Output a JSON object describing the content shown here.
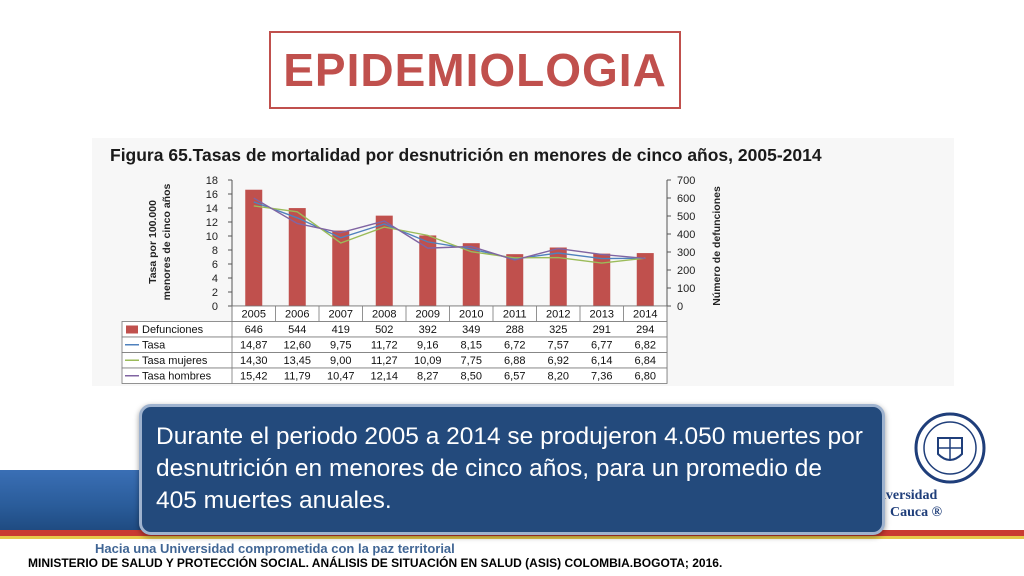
{
  "slide": {
    "title": "EPIDEMIOLOGIA",
    "callout": "Durante el periodo 2005 a 2014 se produjeron 4.050 muertes por desnutrición en menores de cinco años, para un promedio de 405 muertes anuales.",
    "slogan": "Hacia una Universidad comprometida con la paz territorial",
    "source": "MINISTERIO DE SALUD Y PROTECCIÓN SOCIAL. ANÁLISIS DE SITUACIÓN EN SALUD (ASIS) COLOMBIA.BOGOTA; 2016.",
    "logo_line1": "iversidad",
    "logo_line2": "Cauca ®"
  },
  "chart_data": {
    "type": "bar",
    "title": "Figura 65.Tasas de mortalidad por desnutrición en menores de cinco años, 2005-2014",
    "ylabel_left": "Tasa por 100.000 menores de cinco años",
    "ylabel_right": "Número de defunciones",
    "ylim_left": [
      0,
      18
    ],
    "yticks_left": [
      0,
      2,
      4,
      6,
      8,
      10,
      12,
      14,
      16,
      18
    ],
    "ylim_right": [
      0,
      700
    ],
    "yticks_right": [
      0,
      100,
      200,
      300,
      400,
      500,
      600,
      700
    ],
    "categories": [
      "2005",
      "2006",
      "2007",
      "2008",
      "2009",
      "2010",
      "2011",
      "2012",
      "2013",
      "2014"
    ],
    "bar_series": {
      "name": "Defunciones",
      "axis": "right",
      "color": "#c0504d",
      "values": [
        646,
        544,
        419,
        502,
        392,
        349,
        288,
        325,
        291,
        294
      ],
      "labels": [
        "646",
        "544",
        "419",
        "502",
        "392",
        "349",
        "288",
        "325",
        "291",
        "294"
      ]
    },
    "line_series": [
      {
        "name": "Tasa",
        "axis": "left",
        "color": "#4f81bd",
        "values": [
          14.87,
          12.6,
          9.75,
          11.72,
          9.16,
          8.15,
          6.72,
          7.57,
          6.77,
          6.82
        ],
        "labels": [
          "14,87",
          "12,60",
          "9,75",
          "11,72",
          "9,16",
          "8,15",
          "6,72",
          "7,57",
          "6,77",
          "6,82"
        ]
      },
      {
        "name": "Tasa mujeres",
        "axis": "left",
        "color": "#9bbb59",
        "values": [
          14.3,
          13.45,
          9.0,
          11.27,
          10.09,
          7.75,
          6.88,
          6.92,
          6.14,
          6.84
        ],
        "labels": [
          "14,30",
          "13,45",
          "9,00",
          "11,27",
          "10,09",
          "7,75",
          "6,88",
          "6,92",
          "6,14",
          "6,84"
        ]
      },
      {
        "name": "Tasa hombres",
        "axis": "left",
        "color": "#8064a2",
        "values": [
          15.42,
          11.79,
          10.47,
          12.14,
          8.27,
          8.5,
          6.57,
          8.2,
          7.36,
          6.8
        ],
        "labels": [
          "15,42",
          "11,79",
          "10,47",
          "12,14",
          "8,27",
          "8,50",
          "6,57",
          "8,20",
          "7,36",
          "6,80"
        ]
      }
    ],
    "grid": false
  },
  "colors": {
    "title_red": "#c0504d",
    "callout_bg": "#234a7c",
    "band_blue": "#2a5c9a"
  }
}
